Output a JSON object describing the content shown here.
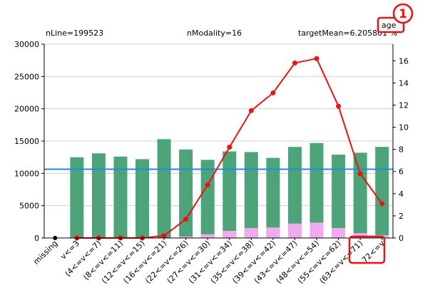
{
  "header": {
    "n_line": "nLine=199523",
    "n_modality": "nModality=16",
    "target_mean": "targetMean=6.205801 %",
    "variable": "age"
  },
  "annotations": [
    {
      "number": "1"
    }
  ],
  "colors": {
    "bar": "#4da37a",
    "bar_target": "#f0aaf0",
    "line": "#ee1111",
    "mean_line": "#1f8fd8",
    "highlight": "#ee1111"
  },
  "chart_data": {
    "type": "bar",
    "title": "",
    "xlabel": "",
    "ylabel": "",
    "categories": [
      "missing",
      "v<=3",
      "(4<=v<=7)",
      "(8<=v<=11)",
      "(12<=v<=15)",
      "(16<=v<=21)",
      "(22<=v<=26)",
      "(27<=v<=30)",
      "(31<=v<=34)",
      "(35<=v<=38)",
      "(39<=v<=42)",
      "(43<=v<=47)",
      "(48<=v<=54)",
      "(55<=v<=62)",
      "(63<=v<=71)",
      "72<=v"
    ],
    "ylim": [
      0,
      30000
    ],
    "yticks": [
      0,
      5000,
      10000,
      15000,
      20000,
      25000,
      30000
    ],
    "y2lim": [
      0,
      17.5
    ],
    "y2ticks": [
      0,
      2,
      4,
      6,
      8,
      10,
      12,
      14,
      16
    ],
    "series": [
      {
        "role": "count",
        "axis": "left",
        "values": [
          0,
          12500,
          13100,
          12600,
          12200,
          15300,
          13700,
          12100,
          13400,
          13300,
          12400,
          14100,
          14700,
          12900,
          13200,
          14100
        ]
      },
      {
        "role": "target count",
        "axis": "left",
        "values": [
          0,
          0,
          0,
          0,
          0,
          40,
          230,
          580,
          1100,
          1530,
          1630,
          2230,
          2380,
          1540,
          760,
          430
        ]
      },
      {
        "role": "target rate",
        "axis": "right",
        "values": [
          0,
          0,
          0,
          0,
          0,
          0.2,
          1.7,
          4.8,
          8.2,
          11.5,
          13.1,
          15.8,
          16.2,
          11.9,
          5.8,
          3.1
        ]
      }
    ],
    "reference_line": {
      "axis": "right",
      "value": 6.205801
    },
    "highlighted_category": "72<=v"
  }
}
